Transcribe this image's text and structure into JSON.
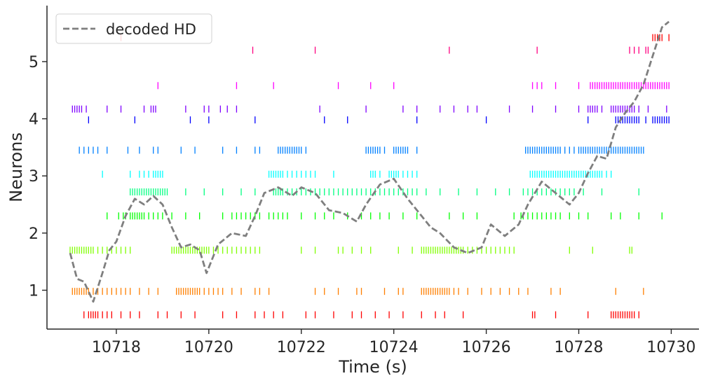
{
  "chart_data": {
    "type": "scatter",
    "xlabel": "Time (s)",
    "ylabel": "Neurons",
    "xlim": [
      10716.5,
      10730.6
    ],
    "ylim": [
      0.32,
      5.98
    ],
    "xticks": [
      10718,
      10720,
      10722,
      10724,
      10726,
      10728,
      10730
    ],
    "yticks": [
      1,
      2,
      3,
      4,
      5
    ],
    "xtick_labels": [
      "10718",
      "10720",
      "10722",
      "10724",
      "10726",
      "10728",
      "10730"
    ],
    "ytick_labels": [
      "1",
      "2",
      "3",
      "4",
      "5"
    ],
    "grid": false,
    "legend": {
      "placement": "top-left",
      "entries": [
        "decoded HD"
      ]
    },
    "series": [
      {
        "name": "decoded HD",
        "style": "dashed",
        "color": "#7f7f7f",
        "x": [
          10717.0,
          10717.15,
          10717.3,
          10717.5,
          10717.7,
          10717.85,
          10718.0,
          10718.2,
          10718.4,
          10718.6,
          10718.8,
          10719.0,
          10719.2,
          10719.4,
          10719.6,
          10719.8,
          10719.95,
          10720.2,
          10720.5,
          10720.8,
          10721.0,
          10721.2,
          10721.5,
          10721.8,
          10722.0,
          10722.3,
          10722.6,
          10722.9,
          10723.2,
          10723.4,
          10723.7,
          10724.0,
          10724.3,
          10724.6,
          10724.8,
          10725.0,
          10725.3,
          10725.6,
          10725.9,
          10726.1,
          10726.4,
          10726.7,
          10726.9,
          10727.2,
          10727.5,
          10727.8,
          10728.0,
          10728.2,
          10728.4,
          10728.6,
          10728.8,
          10729.0,
          10729.2,
          10729.4,
          10729.6,
          10729.8,
          10729.95
        ],
        "y": [
          1.65,
          1.2,
          1.15,
          0.8,
          1.3,
          1.7,
          1.85,
          2.3,
          2.6,
          2.5,
          2.65,
          2.5,
          2.1,
          1.75,
          1.8,
          1.7,
          1.3,
          1.8,
          2.0,
          1.95,
          2.3,
          2.7,
          2.8,
          2.65,
          2.8,
          2.7,
          2.4,
          2.35,
          2.2,
          2.5,
          2.85,
          2.95,
          2.6,
          2.3,
          2.1,
          2.0,
          1.75,
          1.65,
          1.75,
          2.15,
          1.95,
          2.15,
          2.5,
          2.9,
          2.7,
          2.5,
          2.7,
          3.05,
          3.35,
          3.3,
          3.85,
          4.1,
          4.3,
          4.6,
          5.1,
          5.6,
          5.7
        ]
      }
    ],
    "spike_trains": [
      {
        "neuron": 1,
        "color": "#ff0000",
        "level": 0.57,
        "times": [
          10717.3,
          10717.4,
          10717.45,
          10717.5,
          10717.55,
          10717.6,
          10717.7,
          10717.8,
          10717.9,
          10718.1,
          10718.3,
          10718.5,
          10718.9,
          10719.1,
          10719.4,
          10719.7,
          10720.3,
          10720.6,
          10721.0,
          10721.2,
          10721.4,
          10721.6,
          10722.1,
          10722.3,
          10722.7,
          10723.1,
          10723.3,
          10723.6,
          10723.9,
          10724.2,
          10724.6,
          10724.9,
          10725.1,
          10725.5,
          10727.0,
          10727.05,
          10727.5,
          10728.2,
          10728.7,
          10728.75,
          10728.8,
          10728.85,
          10728.9,
          10728.95,
          10729.0,
          10729.05,
          10729.1,
          10729.15,
          10729.2,
          10729.3
        ]
      },
      {
        "neuron": 2,
        "color": "#ff7f00",
        "level": 0.98,
        "times": [
          10717.05,
          10717.1,
          10717.15,
          10717.2,
          10717.25,
          10717.3,
          10717.35,
          10717.4,
          10717.5,
          10717.6,
          10717.7,
          10717.8,
          10717.9,
          10718.0,
          10718.1,
          10718.2,
          10718.3,
          10718.5,
          10718.7,
          10718.9,
          10719.3,
          10719.35,
          10719.4,
          10719.45,
          10719.5,
          10719.55,
          10719.6,
          10719.65,
          10719.7,
          10719.75,
          10719.8,
          10719.9,
          10720.0,
          10720.1,
          10720.2,
          10720.3,
          10720.5,
          10720.7,
          10721.0,
          10721.1,
          10721.3,
          10722.3,
          10722.5,
          10722.8,
          10723.2,
          10723.3,
          10723.8,
          10724.1,
          10724.2,
          10724.6,
          10724.65,
          10724.7,
          10724.75,
          10724.8,
          10724.85,
          10724.9,
          10724.95,
          10725.0,
          10725.05,
          10725.1,
          10725.15,
          10725.2,
          10725.3,
          10725.4,
          10725.6,
          10725.9,
          10726.1,
          10726.3,
          10726.5,
          10726.7,
          10726.9,
          10727.4,
          10727.6,
          10728.8,
          10729.4
        ]
      },
      {
        "neuron": 3,
        "color": "#80ff00",
        "level": 1.7,
        "times": [
          10717.0,
          10717.05,
          10717.1,
          10717.15,
          10717.2,
          10717.25,
          10717.3,
          10717.35,
          10717.4,
          10717.45,
          10717.5,
          10717.6,
          10717.7,
          10717.8,
          10717.9,
          10718.0,
          10718.1,
          10718.2,
          10718.3,
          10719.2,
          10719.25,
          10719.3,
          10719.35,
          10719.4,
          10719.45,
          10719.5,
          10719.55,
          10719.6,
          10719.65,
          10719.7,
          10719.75,
          10719.8,
          10719.85,
          10719.9,
          10719.95,
          10720.0,
          10720.1,
          10720.2,
          10720.3,
          10720.4,
          10720.5,
          10720.6,
          10720.7,
          10720.8,
          10720.9,
          10721.0,
          10721.1,
          10722.0,
          10722.3,
          10722.8,
          10722.9,
          10723.1,
          10723.3,
          10723.5,
          10724.1,
          10724.4,
          10724.6,
          10724.65,
          10724.7,
          10724.75,
          10724.8,
          10724.85,
          10724.9,
          10724.95,
          10725.0,
          10725.05,
          10725.1,
          10725.15,
          10725.2,
          10725.25,
          10725.3,
          10725.35,
          10725.4,
          10725.45,
          10725.5,
          10725.6,
          10725.7,
          10725.8,
          10725.9,
          10726.0,
          10726.1,
          10726.2,
          10726.3,
          10726.4,
          10726.5,
          10726.6,
          10727.8,
          10728.3,
          10729.1,
          10729.15
        ]
      },
      {
        "neuron": 4,
        "color": "#00ff00",
        "level": 2.3,
        "times": [
          10717.8,
          10718.05,
          10718.15,
          10718.2,
          10718.3,
          10718.35,
          10718.4,
          10718.45,
          10718.5,
          10718.55,
          10718.6,
          10718.7,
          10718.8,
          10718.9,
          10719.0,
          10719.2,
          10719.5,
          10719.8,
          10720.3,
          10720.5,
          10720.6,
          10720.7,
          10720.8,
          10720.9,
          10721.0,
          10721.1,
          10721.3,
          10721.4,
          10721.5,
          10721.6,
          10721.7,
          10722.0,
          10722.3,
          10722.5,
          10722.7,
          10723.0,
          10723.3,
          10723.5,
          10723.7,
          10723.9,
          10724.2,
          10724.5,
          10725.2,
          10725.5,
          10725.8,
          10726.6,
          10726.75,
          10726.8,
          10726.9,
          10727.0,
          10727.1,
          10727.2,
          10727.3,
          10727.4,
          10727.5,
          10727.6,
          10727.8,
          10728.0,
          10728.2,
          10728.7,
          10728.9,
          10729.3,
          10729.8
        ]
      },
      {
        "neuron": 5,
        "color": "#00ff80",
        "level": 2.72,
        "times": [
          10718.3,
          10718.35,
          10718.4,
          10718.45,
          10718.5,
          10718.55,
          10718.6,
          10718.65,
          10718.7,
          10718.75,
          10718.8,
          10718.85,
          10718.9,
          10718.95,
          10719.0,
          10719.05,
          10719.1,
          10719.5,
          10719.9,
          10720.3,
          10720.7,
          10721.0,
          10721.4,
          10721.45,
          10721.5,
          10721.55,
          10721.6,
          10721.7,
          10721.8,
          10721.9,
          10722.0,
          10722.1,
          10722.2,
          10722.3,
          10722.4,
          10722.5,
          10722.6,
          10722.7,
          10722.8,
          10722.9,
          10723.0,
          10723.1,
          10723.2,
          10723.3,
          10723.4,
          10723.5,
          10723.6,
          10723.7,
          10723.8,
          10723.9,
          10724.0,
          10724.1,
          10724.2,
          10724.3,
          10724.4,
          10724.5,
          10724.7,
          10725.0,
          10725.4,
          10725.8,
          10726.2,
          10726.5,
          10726.8,
          10726.9,
          10727.0,
          10727.1,
          10727.2,
          10727.3,
          10727.4,
          10727.5,
          10727.6,
          10727.7,
          10727.8,
          10727.9,
          10728.1,
          10728.5,
          10729.3
        ]
      },
      {
        "neuron": 6,
        "color": "#00ffff",
        "level": 3.03,
        "times": [
          10717.7,
          10718.3,
          10718.5,
          10718.6,
          10718.7,
          10718.8,
          10718.85,
          10718.9,
          10718.95,
          10719.0,
          10721.3,
          10721.35,
          10721.4,
          10721.45,
          10721.5,
          10721.55,
          10721.6,
          10721.7,
          10721.8,
          10721.9,
          10722.0,
          10722.1,
          10722.2,
          10722.3,
          10722.7,
          10723.5,
          10723.55,
          10723.6,
          10723.7,
          10723.9,
          10723.95,
          10724.0,
          10724.05,
          10724.1,
          10724.2,
          10724.3,
          10724.4,
          10724.5,
          10726.95,
          10727.0,
          10727.05,
          10727.1,
          10727.15,
          10727.2,
          10727.25,
          10727.3,
          10727.35,
          10727.4,
          10727.45,
          10727.5,
          10727.55,
          10727.6,
          10727.65,
          10727.7,
          10727.75,
          10727.8,
          10727.85,
          10727.9,
          10727.95,
          10728.0,
          10728.05,
          10728.1,
          10728.15,
          10728.2,
          10728.25,
          10728.3,
          10728.35,
          10728.4,
          10728.45,
          10728.5,
          10728.6,
          10728.7
        ]
      },
      {
        "neuron": 7,
        "color": "#0080ff",
        "level": 3.45,
        "times": [
          10717.2,
          10717.3,
          10717.4,
          10717.5,
          10717.6,
          10717.8,
          10718.25,
          10718.5,
          10718.8,
          10718.9,
          10719.4,
          10719.7,
          10720.3,
          10720.6,
          10721.0,
          10721.1,
          10721.5,
          10721.55,
          10721.6,
          10721.65,
          10721.7,
          10721.75,
          10721.8,
          10721.85,
          10721.9,
          10721.95,
          10722.0,
          10722.1,
          10723.4,
          10723.45,
          10723.5,
          10723.55,
          10723.6,
          10723.65,
          10723.7,
          10723.8,
          10724.0,
          10724.05,
          10724.1,
          10724.15,
          10724.2,
          10724.25,
          10724.3,
          10724.5,
          10726.85,
          10726.9,
          10726.95,
          10727.0,
          10727.05,
          10727.1,
          10727.15,
          10727.2,
          10727.25,
          10727.3,
          10727.35,
          10727.4,
          10727.45,
          10727.5,
          10727.55,
          10727.6,
          10727.7,
          10727.8,
          10727.9,
          10728.0,
          10728.05,
          10728.1,
          10728.15,
          10728.2,
          10728.25,
          10728.3,
          10728.35,
          10728.4,
          10728.45,
          10728.5,
          10728.55,
          10728.6,
          10728.65,
          10728.7,
          10728.75,
          10728.8,
          10728.85,
          10728.9,
          10728.95,
          10729.0,
          10729.05,
          10729.1,
          10729.15,
          10729.2,
          10729.25,
          10729.3,
          10729.35,
          10729.4
        ]
      },
      {
        "neuron": 8,
        "color": "#0000ff",
        "level": 3.98,
        "times": [
          10717.4,
          10718.4,
          10719.6,
          10720.0,
          10721.0,
          10722.5,
          10723.0,
          10724.5,
          10726.0,
          10728.2,
          10728.8,
          10728.85,
          10728.9,
          10728.95,
          10729.0,
          10729.05,
          10729.1,
          10729.15,
          10729.2,
          10729.25,
          10729.3,
          10729.45,
          10729.6,
          10729.65,
          10729.7,
          10729.75,
          10729.8,
          10729.85,
          10729.9,
          10729.95
        ]
      },
      {
        "neuron": 9,
        "color": "#7f00ff",
        "level": 4.17,
        "times": [
          10717.05,
          10717.1,
          10717.15,
          10717.2,
          10717.25,
          10717.35,
          10717.8,
          10718.1,
          10718.6,
          10718.75,
          10718.8,
          10718.85,
          10719.5,
          10719.9,
          10720.0,
          10720.25,
          10720.4,
          10720.6,
          10722.4,
          10723.4,
          10724.2,
          10724.5,
          10725.0,
          10725.3,
          10725.6,
          10725.8,
          10726.5,
          10727.0,
          10727.5,
          10728.0,
          10728.2,
          10728.25,
          10728.3,
          10728.35,
          10728.4,
          10728.5,
          10728.7,
          10728.75,
          10728.8,
          10728.85,
          10728.9,
          10728.95,
          10729.0,
          10729.05,
          10729.1,
          10729.15,
          10729.2,
          10729.3,
          10729.5,
          10729.9
        ]
      },
      {
        "neuron": 10,
        "color": "#ff00ff",
        "level": 4.58,
        "times": [
          10718.9,
          10720.6,
          10721.4,
          10722.8,
          10723.5,
          10724.0,
          10727.0,
          10727.1,
          10727.2,
          10727.5,
          10728.0,
          10728.25,
          10728.3,
          10728.35,
          10728.4,
          10728.45,
          10728.5,
          10728.55,
          10728.6,
          10728.65,
          10728.7,
          10728.75,
          10728.8,
          10728.85,
          10728.9,
          10728.95,
          10729.0,
          10729.05,
          10729.1,
          10729.15,
          10729.2,
          10729.25,
          10729.3,
          10729.35,
          10729.4,
          10729.45,
          10729.5,
          10729.55,
          10729.6,
          10729.65,
          10729.7,
          10729.75,
          10729.8,
          10729.85,
          10729.9,
          10729.95
        ]
      },
      {
        "neuron": 11,
        "color": "#ff0080",
        "level": 5.2,
        "times": [
          10720.95,
          10722.3,
          10725.2,
          10727.1,
          10729.1,
          10729.2,
          10729.3,
          10729.45,
          10729.5
        ]
      },
      {
        "neuron": 12,
        "color": "#ff0000",
        "level": 5.42,
        "times": [
          10718.1,
          10729.6,
          10729.65,
          10729.7,
          10729.75,
          10729.8,
          10729.95
        ]
      }
    ]
  }
}
